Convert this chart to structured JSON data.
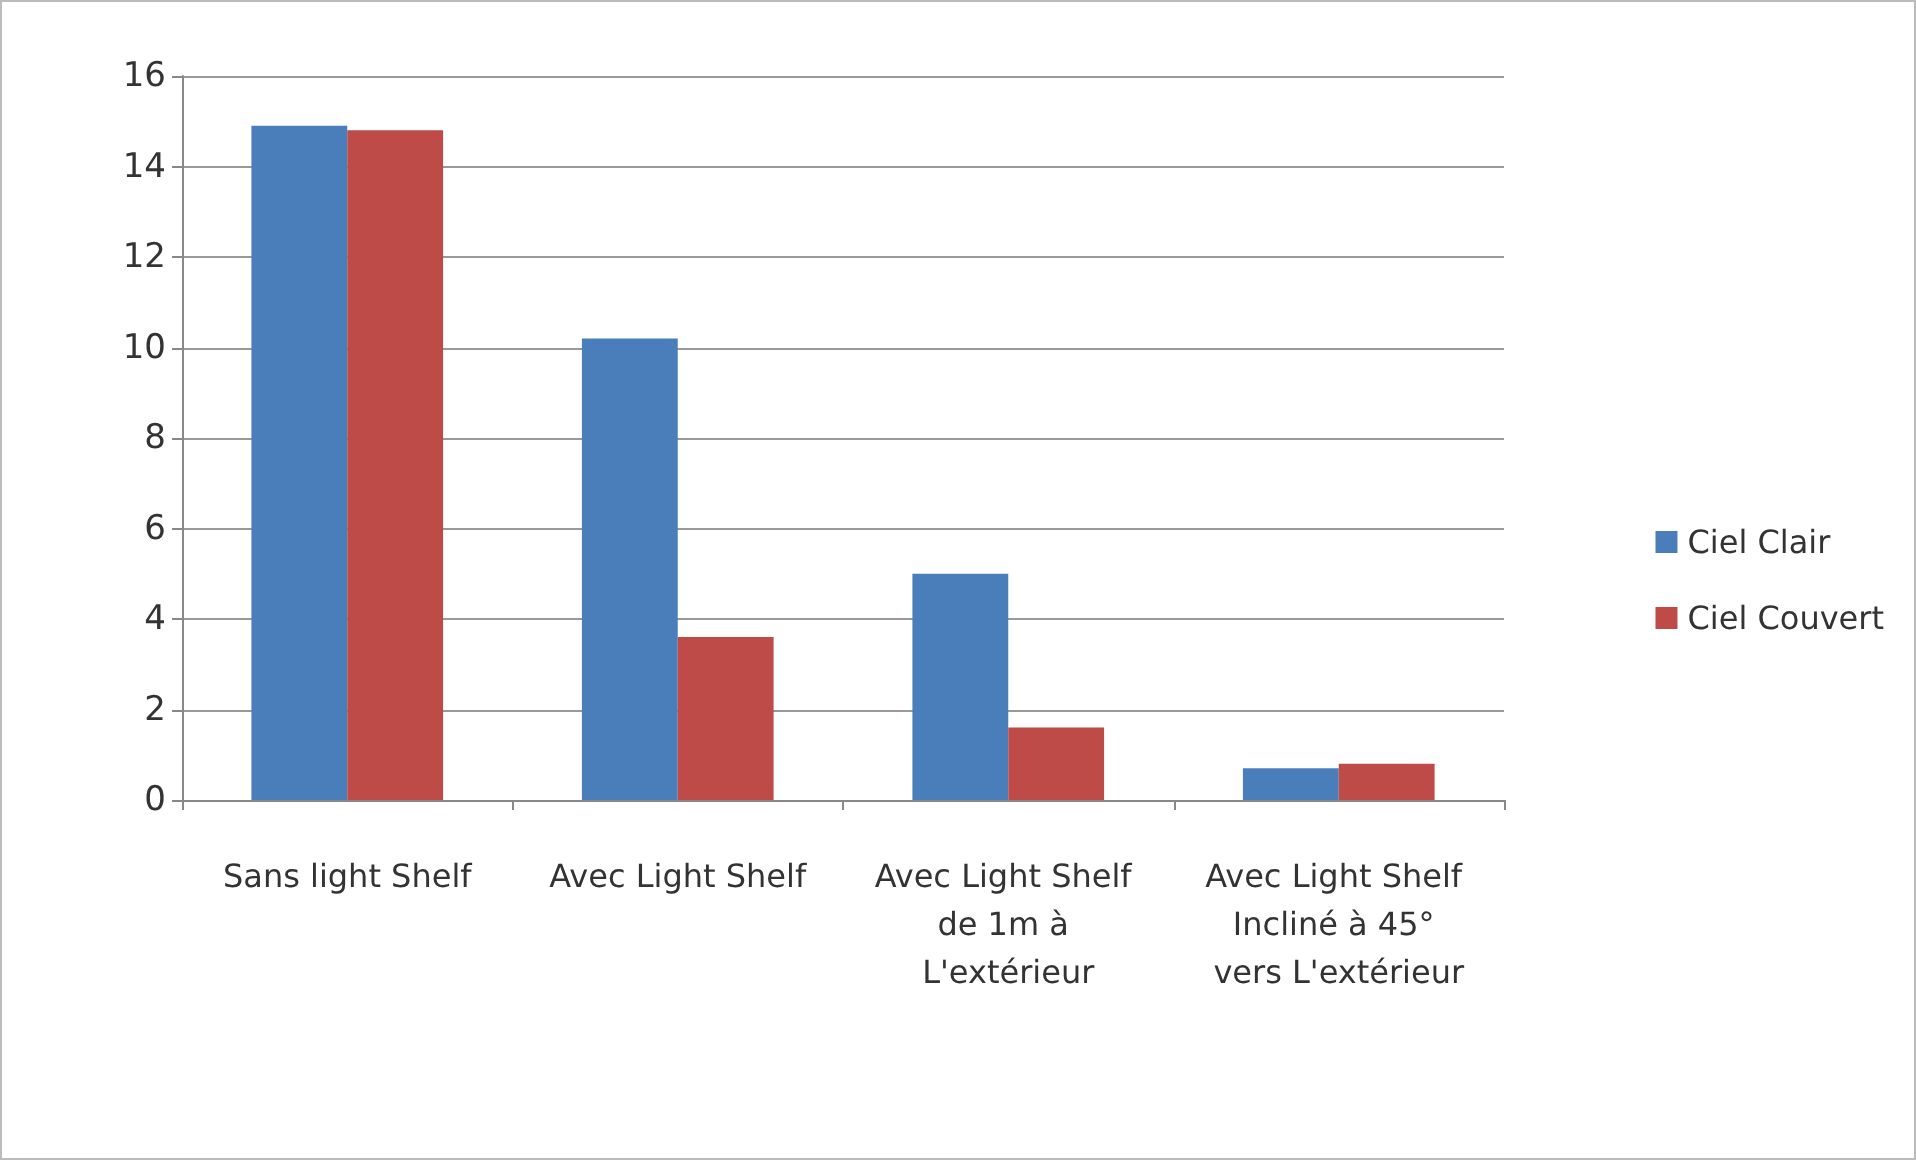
{
  "chart_data": {
    "type": "bar",
    "categories": [
      "Sans light Shelf",
      "Avec Light Shelf",
      "Avec Light Shelf de 1m à L'extérieur",
      "Avec Light Shelf Incliné à 45° vers L'extérieur"
    ],
    "series": [
      {
        "name": "Ciel Clair",
        "color": "#4a7ebb",
        "values": [
          14.9,
          10.2,
          5.0,
          0.7
        ]
      },
      {
        "name": "Ciel Couvert",
        "color": "#be4b48",
        "values": [
          14.8,
          3.6,
          1.6,
          0.8
        ]
      }
    ],
    "ylim": [
      0,
      16
    ],
    "yticks": [
      0,
      2,
      4,
      6,
      8,
      10,
      12,
      14,
      16
    ],
    "grid": "y",
    "legend": "right"
  }
}
